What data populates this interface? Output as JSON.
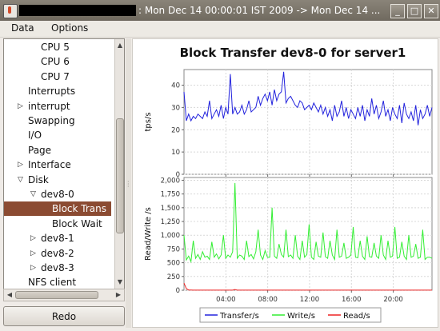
{
  "window": {
    "title": ": Mon Dec 14 00:00:01 IST 2009 -> Mon Dec 14 ...",
    "buttons": [
      "_",
      "□",
      "✕"
    ]
  },
  "menubar": {
    "items": [
      "Data",
      "Options"
    ]
  },
  "tree": {
    "items": [
      {
        "label": "CPU 5",
        "level": 2,
        "arrow": ""
      },
      {
        "label": "CPU 6",
        "level": 2,
        "arrow": ""
      },
      {
        "label": "CPU 7",
        "level": 2,
        "arrow": ""
      },
      {
        "label": "Interrupts",
        "level": 1,
        "arrow": ""
      },
      {
        "label": "interrupt",
        "level": 1,
        "arrow": "collapsed"
      },
      {
        "label": "Swapping",
        "level": 1,
        "arrow": ""
      },
      {
        "label": "I/O",
        "level": 1,
        "arrow": ""
      },
      {
        "label": "Page",
        "level": 1,
        "arrow": ""
      },
      {
        "label": "Interface",
        "level": 1,
        "arrow": "collapsed"
      },
      {
        "label": "Disk",
        "level": 1,
        "arrow": "expanded"
      },
      {
        "label": "dev8-0",
        "level": 2,
        "arrow": "expanded"
      },
      {
        "label": "Block Trans",
        "level": 3,
        "arrow": "",
        "selected": true
      },
      {
        "label": "Block Wait",
        "level": 3,
        "arrow": ""
      },
      {
        "label": "dev8-1",
        "level": 2,
        "arrow": "collapsed"
      },
      {
        "label": "dev8-2",
        "level": 2,
        "arrow": "collapsed"
      },
      {
        "label": "dev8-3",
        "level": 2,
        "arrow": "collapsed"
      },
      {
        "label": "NFS client",
        "level": 1,
        "arrow": ""
      }
    ]
  },
  "redo_label": "Redo",
  "chart_data": {
    "type": "line",
    "title": "Block Transfer dev8-0 for server1",
    "x_ticks": [
      "04:00",
      "08:00",
      "12:00",
      "16:00",
      "20:00"
    ],
    "x_tick_hours": [
      4,
      8,
      12,
      16,
      20
    ],
    "x_range": [
      0,
      23.7
    ],
    "panels": [
      {
        "ylabel": "tps/s",
        "ylim": [
          0,
          47
        ],
        "y_ticks": [
          0,
          10,
          20,
          30,
          40
        ],
        "series": [
          {
            "name": "Transfer/s",
            "color": "#2222dd",
            "values": [
              37,
              24,
              27,
              24,
              26,
              25,
              27,
              26,
              25,
              28,
              26,
              33,
              25,
              27,
              29,
              26,
              31,
              25,
              30,
              27,
              45,
              27,
              30,
              27,
              28,
              31,
              27,
              29,
              33,
              28,
              29,
              30,
              35,
              31,
              34,
              36,
              33,
              37,
              31,
              38,
              33,
              36,
              37,
              46,
              32,
              34,
              35,
              33,
              31,
              30,
              33,
              32,
              29,
              30,
              31,
              29,
              32,
              30,
              28,
              31,
              27,
              30,
              26,
              29,
              24,
              31,
              26,
              28,
              33,
              26,
              30,
              25,
              29,
              27,
              25,
              30,
              26,
              31,
              24,
              29,
              26,
              34,
              27,
              31,
              25,
              28,
              33,
              26,
              29,
              24,
              30,
              27,
              25,
              31,
              23,
              32,
              27,
              25,
              28,
              24,
              31,
              22,
              29,
              25,
              27,
              31,
              26,
              30
            ]
          }
        ]
      },
      {
        "ylabel": "Read/Write /s",
        "ylim": [
          0,
          2050
        ],
        "y_ticks": [
          0,
          250,
          500,
          750,
          1000,
          1250,
          1500,
          1750,
          2000
        ],
        "y_tick_labels": [
          "0",
          "250",
          "500",
          "750",
          "1,000",
          "1,250",
          "1,500",
          "1,750",
          "2,000"
        ],
        "series": [
          {
            "name": "Write/s",
            "color": "#33ee33",
            "values": [
              1000,
              550,
              620,
              520,
              900,
              580,
              650,
              560,
              700,
              600,
              620,
              560,
              880,
              600,
              660,
              570,
              640,
              1000,
              580,
              640,
              600,
              700,
              1950,
              580,
              640,
              620,
              560,
              900,
              610,
              650,
              570,
              700,
              1100,
              640,
              560,
              720,
              600,
              600,
              1500,
              620,
              580,
              840,
              650,
              600,
              1100,
              610,
              640,
              580,
              1000,
              620,
              560,
              900,
              600,
              650,
              1200,
              600,
              560,
              880,
              620,
              600,
              1050,
              610,
              580,
              900,
              640,
              560,
              1100,
              600,
              620,
              860,
              580,
              600,
              640,
              1150,
              600,
              590,
              900,
              620,
              560,
              980,
              610,
              600,
              860,
              620,
              580,
              1000,
              640,
              560,
              900,
              600,
              620,
              1150,
              580,
              600,
              880,
              620,
              560,
              1000,
              600,
              620,
              840,
              580,
              600,
              1100,
              560,
              600,
              600,
              580
            ]
          },
          {
            "name": "Read/s",
            "color": "#ee2222",
            "values": [
              130,
              30,
              5,
              3,
              2,
              2,
              2,
              2,
              2,
              2,
              2,
              2,
              2,
              2,
              2,
              2,
              2,
              2,
              2,
              2,
              2,
              2,
              12,
              2,
              2,
              2,
              2,
              2,
              2,
              2,
              2,
              2,
              2,
              2,
              2,
              2,
              2,
              2,
              2,
              2,
              2,
              2,
              2,
              2,
              2,
              2,
              2,
              2,
              2,
              2,
              2,
              2,
              2,
              2,
              2,
              2,
              2,
              2,
              2,
              2,
              2,
              2,
              2,
              2,
              2,
              2,
              2,
              2,
              2,
              2,
              2,
              2,
              2,
              2,
              2,
              2,
              2,
              2,
              2,
              2,
              2,
              2,
              2,
              2,
              2,
              2,
              2,
              2,
              2,
              2,
              2,
              2,
              2,
              2,
              2,
              2,
              2,
              2,
              2,
              2,
              2,
              2,
              2,
              2,
              2,
              2,
              2,
              2
            ]
          }
        ]
      }
    ],
    "legend": [
      "Transfer/s",
      "Write/s",
      "Read/s"
    ],
    "legend_colors": [
      "#2222dd",
      "#33ee33",
      "#ee2222"
    ],
    "grid": true,
    "legend_position": "bottom"
  }
}
